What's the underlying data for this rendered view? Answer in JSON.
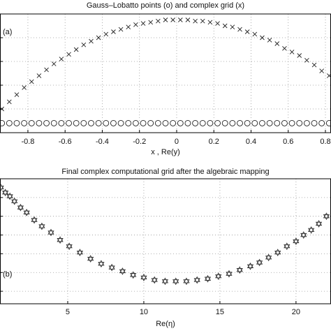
{
  "chart_data": [
    {
      "type": "scatter",
      "title": "Gauss–Lobatto points (o) and complex grid (x)",
      "annotation": "(a)",
      "xlabel": "x , Re(y)",
      "x": [
        -0.94,
        -0.9,
        -0.86,
        -0.82,
        -0.78,
        -0.74,
        -0.7,
        -0.66,
        -0.62,
        -0.58,
        -0.54,
        -0.5,
        -0.46,
        -0.42,
        -0.38,
        -0.34,
        -0.3,
        -0.26,
        -0.22,
        -0.18,
        -0.14,
        -0.1,
        -0.06,
        -0.02,
        0.02,
        0.06,
        0.1,
        0.14,
        0.18,
        0.22,
        0.26,
        0.3,
        0.34,
        0.38,
        0.42,
        0.46,
        0.5,
        0.54,
        0.58,
        0.62,
        0.66,
        0.7,
        0.74,
        0.78,
        0.82
      ],
      "series": [
        {
          "marker": "circle",
          "color": "#222222",
          "values": [
            0.08,
            0.08,
            0.08,
            0.08,
            0.08,
            0.08,
            0.08,
            0.08,
            0.08,
            0.08,
            0.08,
            0.08,
            0.08,
            0.08,
            0.08,
            0.08,
            0.08,
            0.08,
            0.08,
            0.08,
            0.08,
            0.08,
            0.08,
            0.08,
            0.08,
            0.08,
            0.08,
            0.08,
            0.08,
            0.08,
            0.08,
            0.08,
            0.08,
            0.08,
            0.08,
            0.08,
            0.08,
            0.08,
            0.08,
            0.08,
            0.08,
            0.08,
            0.08,
            0.08,
            0.08
          ]
        },
        {
          "marker": "x",
          "color": "#222222",
          "values": [
            0.2,
            0.26,
            0.32,
            0.38,
            0.43,
            0.48,
            0.53,
            0.58,
            0.62,
            0.66,
            0.7,
            0.74,
            0.77,
            0.8,
            0.83,
            0.85,
            0.87,
            0.89,
            0.91,
            0.92,
            0.93,
            0.94,
            0.95,
            0.95,
            0.95,
            0.95,
            0.94,
            0.94,
            0.93,
            0.92,
            0.9,
            0.89,
            0.87,
            0.85,
            0.83,
            0.8,
            0.78,
            0.75,
            0.71,
            0.68,
            0.65,
            0.61,
            0.57,
            0.52,
            0.48
          ]
        }
      ],
      "xlim": [
        -0.95,
        0.83
      ],
      "xticks": [
        -0.8,
        -0.6,
        -0.4,
        -0.2,
        0,
        0.2,
        0.4,
        0.6,
        0.8
      ],
      "ylim": [
        0,
        1
      ],
      "yticks": [
        0.2,
        0.4,
        0.6,
        0.8
      ],
      "grid": true
    },
    {
      "type": "scatter",
      "title": "Final complex computational grid after the algebraic mapping",
      "annotation": "(b)",
      "xlabel": "Re(η)",
      "x": [
        0.6,
        0.9,
        1.2,
        1.5,
        1.9,
        2.3,
        2.8,
        3.3,
        3.9,
        4.5,
        5.1,
        5.8,
        6.5,
        7.2,
        7.9,
        8.6,
        9.3,
        10.0,
        10.7,
        11.4,
        12.1,
        12.8,
        13.5,
        14.2,
        14.9,
        15.6,
        16.3,
        17.0,
        17.6,
        18.2,
        18.8,
        19.4,
        20.0,
        20.5,
        21.0,
        21.5,
        22.0
      ],
      "series": [
        {
          "marker": "star",
          "color": "#222222",
          "values": [
            0.93,
            0.89,
            0.86,
            0.82,
            0.77,
            0.73,
            0.67,
            0.62,
            0.57,
            0.51,
            0.46,
            0.41,
            0.36,
            0.32,
            0.29,
            0.26,
            0.23,
            0.21,
            0.19,
            0.18,
            0.18,
            0.18,
            0.19,
            0.2,
            0.22,
            0.24,
            0.27,
            0.3,
            0.33,
            0.37,
            0.41,
            0.46,
            0.5,
            0.55,
            0.59,
            0.64,
            0.7
          ]
        }
      ],
      "xlim": [
        0.55,
        22.3
      ],
      "xticks": [
        5,
        10,
        15,
        20
      ],
      "ylim": [
        0,
        1
      ],
      "yticks": [
        0.1,
        0.25,
        0.4,
        0.55,
        0.7,
        0.85
      ],
      "grid": true
    }
  ]
}
